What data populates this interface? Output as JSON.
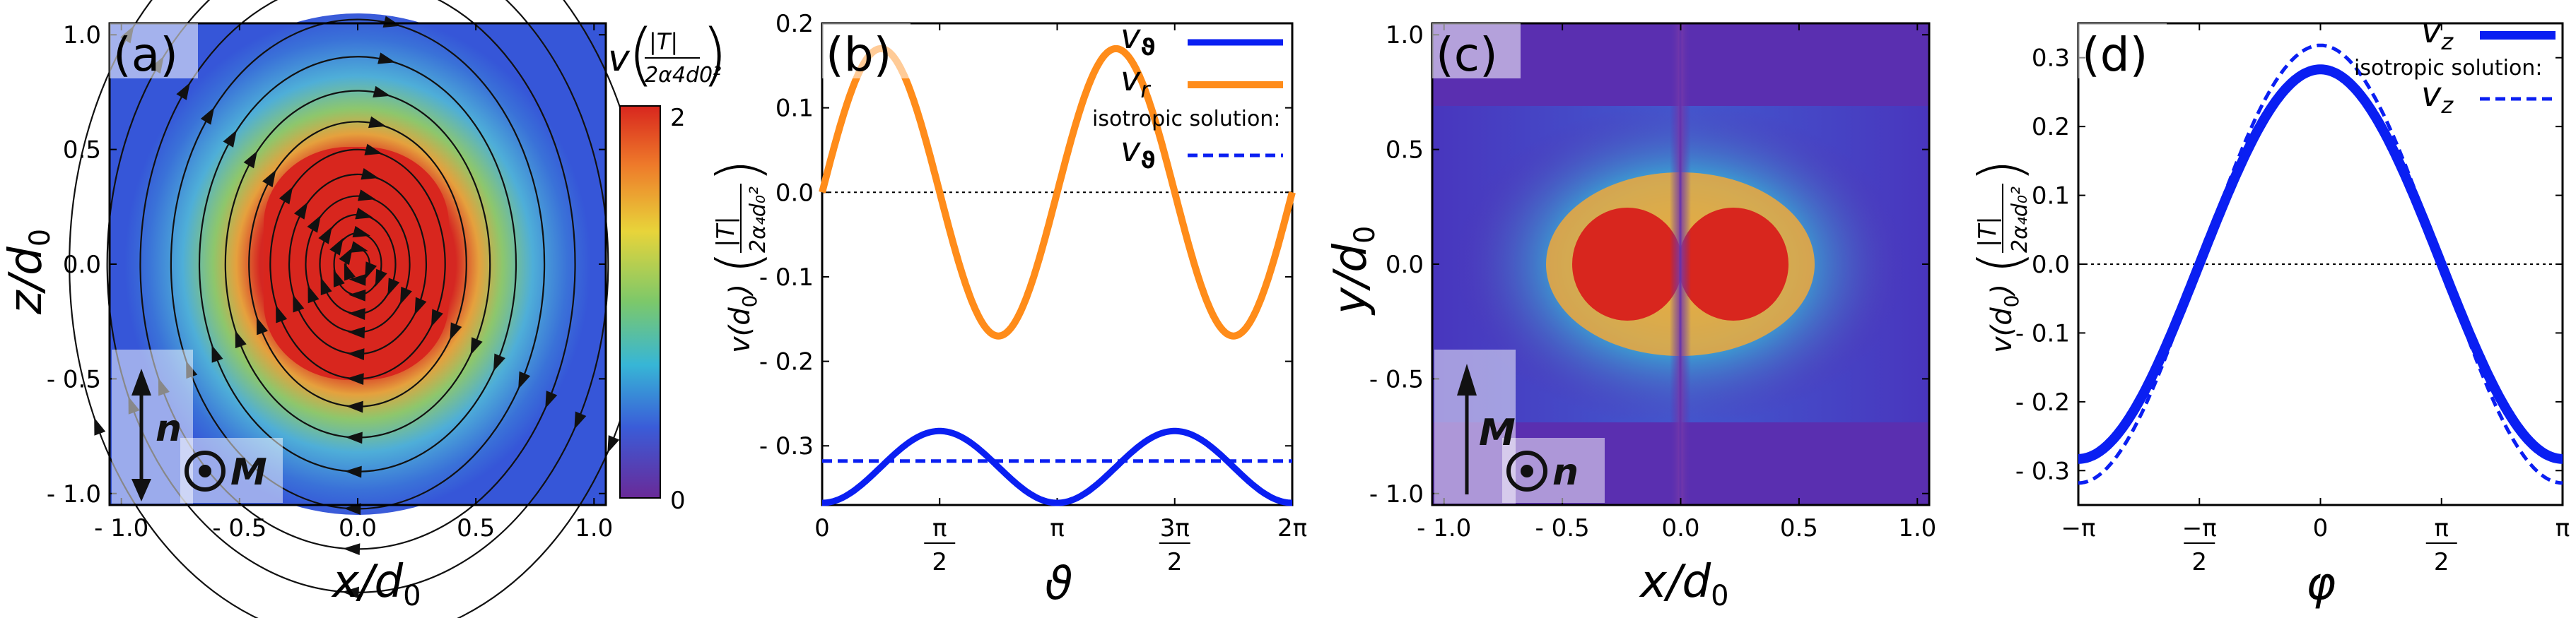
{
  "figure": {
    "panels_label": "four-panel physics figure"
  },
  "chart_data": [
    {
      "id": "a",
      "type": "heatmap",
      "panel_label": "(a)",
      "xlabel": "x/d0",
      "xlabel_main": "x/d",
      "xlabel_sub": "0",
      "ylabel": "z/d0",
      "ylabel_main": "z/d",
      "ylabel_sub": "0",
      "xlim": [
        -1.05,
        1.05
      ],
      "ylim": [
        -1.05,
        1.05
      ],
      "xticks": [
        -1.0,
        -0.5,
        0.0,
        0.5,
        1.0
      ],
      "xtick_labels": [
        "- 1.0",
        "- 0.5",
        "0.0",
        "0.5",
        "1.0"
      ],
      "yticks": [
        -1.0,
        -0.5,
        0.0,
        0.5,
        1.0
      ],
      "ytick_labels": [
        "- 1.0",
        "- 0.5",
        "0.0",
        "0.5",
        "1.0"
      ],
      "colorbar": {
        "label": "v(|T| / 2α4d0²)",
        "label_v": "v",
        "label_num": "|T|",
        "label_den": "2α4d0²",
        "range": [
          0,
          2
        ],
        "tick_labels": [
          "2",
          "0"
        ]
      },
      "annotations": {
        "arrow_label": "n",
        "dot_label": "M"
      },
      "colors": {
        "background": "#3656d8",
        "core": "#d8261e",
        "ring": "#5ab9d6"
      }
    },
    {
      "id": "b",
      "type": "line",
      "panel_label": "(b)",
      "xlabel": "ϑ",
      "ylabel": "v(d0) (|T| / 2α4d0²)",
      "ylabel_v": "v(d",
      "ylabel_tail": ")",
      "xlim": [
        0,
        6.2832
      ],
      "ylim": [
        -0.37,
        0.2
      ],
      "xtick_values": [
        0,
        1.5708,
        3.1416,
        4.7124,
        6.2832
      ],
      "xtick_labels": [
        "0",
        "π/2",
        "π",
        "3π/2",
        "2π"
      ],
      "yticks": [
        0.2,
        0.1,
        0.0,
        -0.1,
        -0.2,
        -0.3
      ],
      "ytick_labels": [
        "0.2",
        "0.1",
        "0.0",
        "- 0.1",
        "- 0.2",
        "- 0.3"
      ],
      "series": [
        {
          "name": "vϑ",
          "color": "#0a1ff2",
          "style": "solid",
          "formula": "-0.325 + 0.0425*cos(2*(x - pi/2) + 0)"
        },
        {
          "name": "vr",
          "color": "#ff8c1a",
          "style": "solid",
          "formula": "0.17*sin(2*x)"
        },
        {
          "name": "isotropic vϑ",
          "color": "#0a1ff2",
          "style": "dashed",
          "value": -0.318
        }
      ],
      "legend": {
        "entry1_main": "v",
        "entry1_sub": "ϑ",
        "entry2_main": "v",
        "entry2_sub": "r",
        "note": "isotropic solution:",
        "entry3_main": "v",
        "entry3_sub": "ϑ"
      }
    },
    {
      "id": "c",
      "type": "heatmap",
      "panel_label": "(c)",
      "xlabel_main": "x/d",
      "xlabel_sub": "0",
      "ylabel_main": "y/d",
      "ylabel_sub": "0",
      "xlim": [
        -1.05,
        1.05
      ],
      "ylim": [
        -1.05,
        1.05
      ],
      "xticks": [
        -1.0,
        -0.5,
        0.0,
        0.5,
        1.0
      ],
      "xtick_labels": [
        "- 1.0",
        "- 0.5",
        "0.0",
        "0.5",
        "1.0"
      ],
      "yticks": [
        -1.0,
        -0.5,
        0.0,
        0.5,
        1.0
      ],
      "ytick_labels": [
        "- 1.0",
        "- 0.5",
        "0.0",
        "0.5",
        "1.0"
      ],
      "annotations": {
        "arrow_label": "M",
        "dot_label": "n"
      },
      "colors": {
        "background": "#5a2fb0",
        "lobes": "#d8261e"
      }
    },
    {
      "id": "d",
      "type": "line",
      "panel_label": "(d)",
      "xlabel": "φ",
      "ylabel_v": "v(d",
      "ylabel_tail": ")",
      "xlim": [
        -3.1416,
        3.1416
      ],
      "ylim": [
        -0.35,
        0.35
      ],
      "xtick_values": [
        -3.1416,
        -1.5708,
        0,
        1.5708,
        3.1416
      ],
      "xtick_labels": [
        "−π",
        "−π/2",
        "0",
        "π/2",
        "π"
      ],
      "yticks": [
        0.3,
        0.2,
        0.1,
        0.0,
        -0.1,
        -0.2,
        -0.3
      ],
      "ytick_labels": [
        "0.3",
        "0.2",
        "0.1",
        "0.0",
        "- 0.1",
        "- 0.2",
        "- 0.3"
      ],
      "series": [
        {
          "name": "vz",
          "color": "#0a1ff2",
          "style": "solid",
          "amplitude": 0.283
        },
        {
          "name": "isotropic vz",
          "color": "#0a1ff2",
          "style": "dashed",
          "amplitude": 0.318
        }
      ],
      "legend": {
        "entry1_main": "v",
        "entry1_sub": "z",
        "note": "isotropic solution:",
        "entry2_main": "v",
        "entry2_sub": "z"
      }
    }
  ]
}
